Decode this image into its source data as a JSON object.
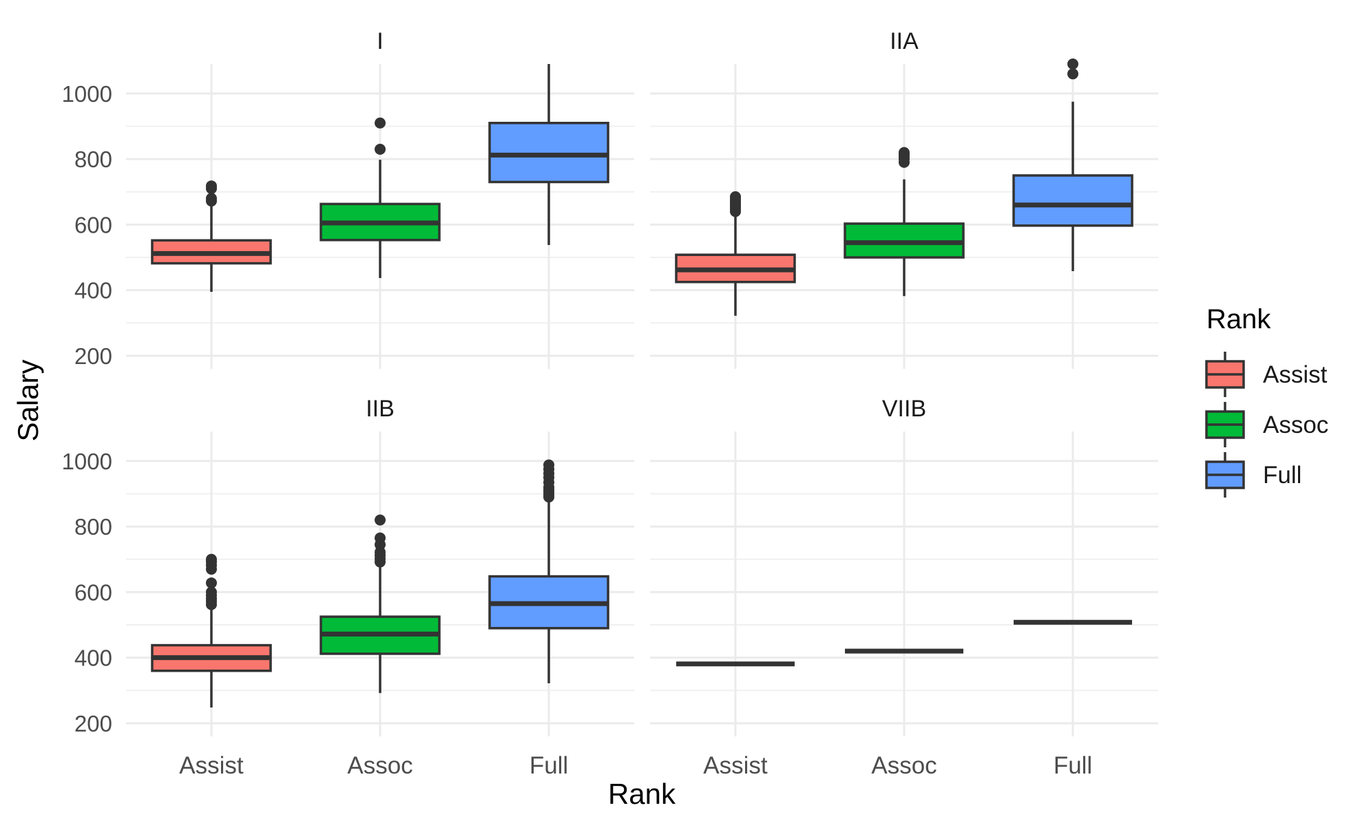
{
  "chart_data": {
    "type": "boxplot",
    "facet_by": "panel",
    "panels": [
      "I",
      "IIA",
      "IIB",
      "VIIB"
    ],
    "categories": [
      "Assist",
      "Assoc",
      "Full"
    ],
    "xlabel": "Rank",
    "ylabel": "Salary",
    "ylim": [
      160,
      1090
    ],
    "y_ticks": [
      200,
      400,
      600,
      800,
      1000
    ],
    "y_tick_labels": [
      "200",
      "400",
      "600",
      "800",
      "1000"
    ],
    "grid": true,
    "legend": {
      "title": "Rank",
      "position": "right",
      "entries": [
        "Assist",
        "Assoc",
        "Full"
      ]
    },
    "colors": {
      "Assist": "#F8766D",
      "Assoc": "#00BA38",
      "Full": "#619CFF"
    },
    "boxes": {
      "I": [
        {
          "category": "Assist",
          "q1": 482,
          "median": 512,
          "q3": 552,
          "whisker_low": 395,
          "whisker_high": 662,
          "outliers": [
            672,
            680,
            710,
            718
          ]
        },
        {
          "category": "Assoc",
          "q1": 553,
          "median": 605,
          "q3": 663,
          "whisker_low": 437,
          "whisker_high": 798,
          "outliers": [
            830,
            910
          ]
        },
        {
          "category": "Full",
          "q1": 730,
          "median": 812,
          "q3": 910,
          "whisker_low": 538,
          "whisker_high": 1090,
          "outliers": []
        }
      ],
      "IIA": [
        {
          "category": "Assist",
          "q1": 425,
          "median": 462,
          "q3": 508,
          "whisker_low": 322,
          "whisker_high": 628,
          "outliers": [
            640,
            648,
            655,
            662,
            670,
            678,
            685
          ]
        },
        {
          "category": "Assoc",
          "q1": 500,
          "median": 545,
          "q3": 603,
          "whisker_low": 382,
          "whisker_high": 738,
          "outliers": [
            790,
            800,
            806,
            813,
            820
          ]
        },
        {
          "category": "Full",
          "q1": 597,
          "median": 660,
          "q3": 750,
          "whisker_low": 458,
          "whisker_high": 975,
          "outliers": [
            1060,
            1090
          ]
        }
      ],
      "IIB": [
        {
          "category": "Assist",
          "q1": 360,
          "median": 400,
          "q3": 438,
          "whisker_low": 248,
          "whisker_high": 552,
          "outliers": [
            562,
            572,
            580,
            590,
            600,
            628,
            670,
            682,
            692,
            700
          ]
        },
        {
          "category": "Assoc",
          "q1": 412,
          "median": 472,
          "q3": 525,
          "whisker_low": 292,
          "whisker_high": 685,
          "outliers": [
            692,
            702,
            712,
            722,
            745,
            765,
            820
          ]
        },
        {
          "category": "Full",
          "q1": 490,
          "median": 565,
          "q3": 648,
          "whisker_low": 322,
          "whisker_high": 885,
          "outliers": [
            890,
            897,
            905,
            912,
            920,
            935,
            950,
            962,
            975,
            988
          ]
        }
      ],
      "VIIB": [
        {
          "category": "Assist",
          "q1": 381,
          "median": 381,
          "q3": 381,
          "whisker_low": 381,
          "whisker_high": 381,
          "outliers": []
        },
        {
          "category": "Assoc",
          "q1": 420,
          "median": 420,
          "q3": 420,
          "whisker_low": 420,
          "whisker_high": 420,
          "outliers": []
        },
        {
          "category": "Full",
          "q1": 508,
          "median": 508,
          "q3": 508,
          "whisker_low": 508,
          "whisker_high": 508,
          "outliers": []
        }
      ]
    }
  }
}
